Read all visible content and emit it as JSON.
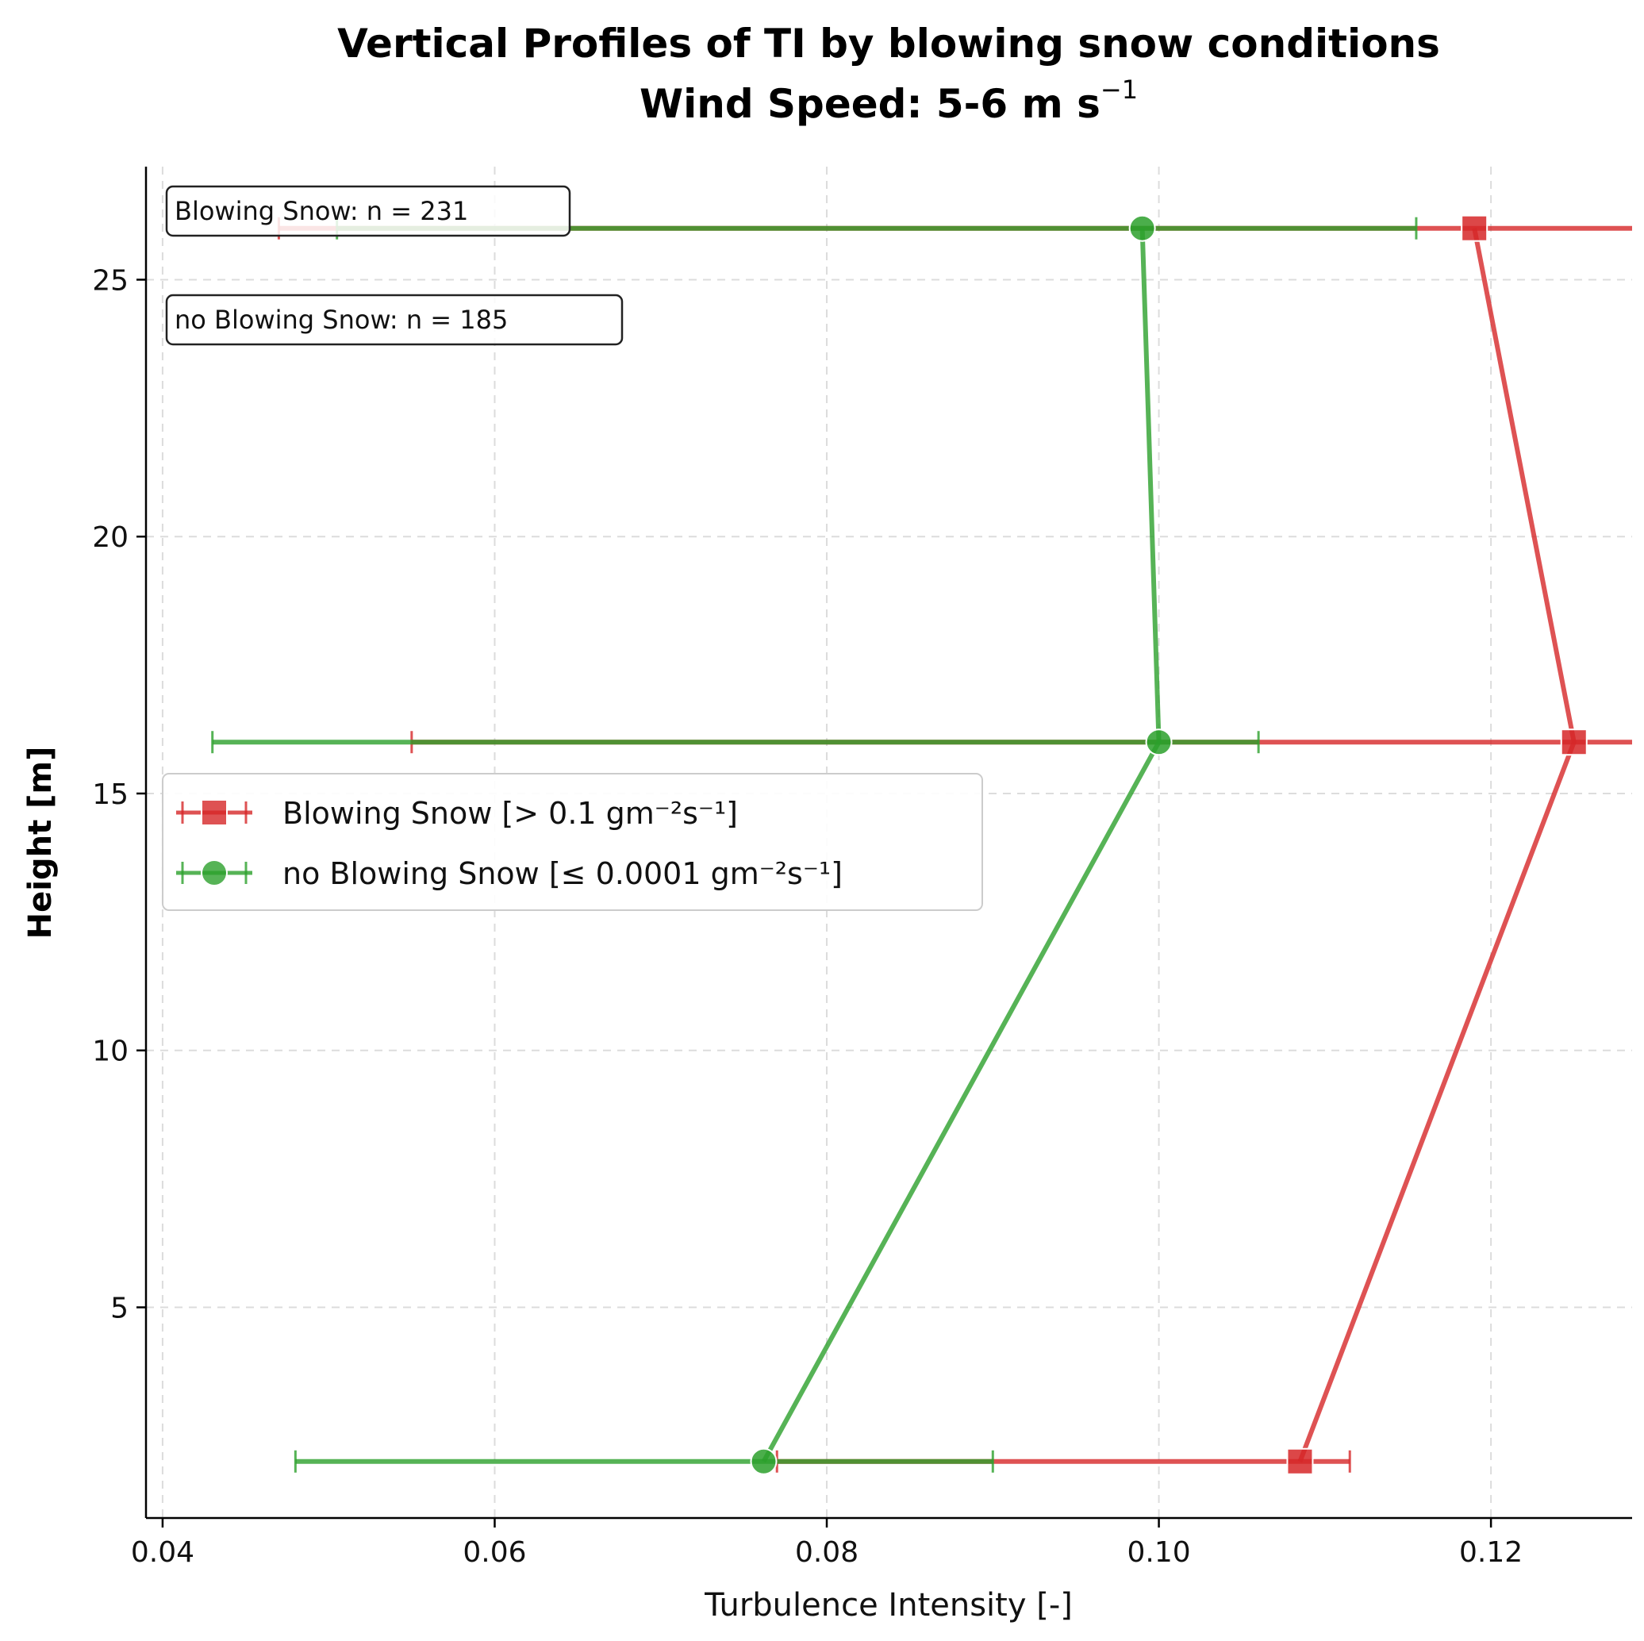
{
  "chart_data": {
    "type": "line",
    "title_line1": "Vertical Profiles of TI by blowing snow conditions",
    "title_line2": "Wind Speed: 5-6 m s",
    "title_line2_sup": "−1",
    "xlabel": "Turbulence Intensity [-]",
    "ylabel": "Height [m]",
    "xlim": [
      0.039,
      0.1285
    ],
    "ylim": [
      0.9,
      27.2
    ],
    "xticks": [
      0.04,
      0.06,
      0.08,
      0.1,
      0.12
    ],
    "xtick_labels": [
      "0.04",
      "0.06",
      "0.08",
      "0.10",
      "0.12"
    ],
    "yticks": [
      5,
      10,
      15,
      20,
      25
    ],
    "ytick_labels": [
      "5",
      "10",
      "15",
      "20",
      "25"
    ],
    "grid": true,
    "legend_position": "center-left",
    "series": [
      {
        "name": "Blowing Snow [> 0.1 gm⁻²s⁻¹]",
        "color": "#d62728",
        "marker": "square",
        "x": [
          0.1085,
          0.125,
          0.119
        ],
        "y": [
          2,
          16,
          26
        ],
        "xerr_low": [
          0.077,
          0.055,
          0.047
        ],
        "xerr_high": [
          0.1115,
          0.1445,
          0.1945
        ]
      },
      {
        "name": "no Blowing Snow [≤ 0.0001 gm⁻²s⁻¹]",
        "color": "#2ca02c",
        "marker": "circle",
        "x": [
          0.0762,
          0.1,
          0.099
        ],
        "y": [
          2,
          16,
          26
        ],
        "xerr_low": [
          0.048,
          0.043,
          0.0505
        ],
        "xerr_high": [
          0.09,
          0.106,
          0.1155
        ]
      }
    ],
    "annotations": [
      "Blowing Snow: n = 231",
      "no Blowing Snow: n = 185"
    ]
  }
}
